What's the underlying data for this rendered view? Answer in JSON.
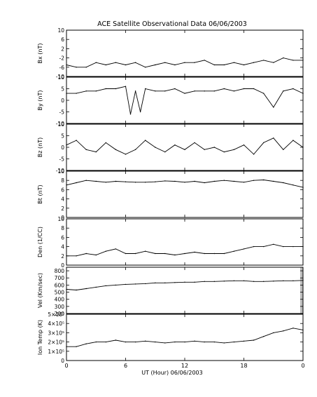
{
  "figure": {
    "title": "ACE Satellite Observational Data   06/06/2003",
    "xlabel": "UT (Hour)   06/06/2003"
  },
  "chart_data": [
    {
      "type": "line",
      "id": "bx",
      "ylabel": "Bx (nT)",
      "ylim": [
        -10,
        10
      ],
      "yticks": [
        "10",
        "6",
        "2",
        "-2",
        "-6",
        "-10"
      ],
      "ytick_values": [
        10,
        6,
        2,
        -2,
        -6,
        -10
      ],
      "xlim": [
        0,
        24
      ],
      "xticks": [
        "0",
        "6",
        "12",
        "18",
        "0"
      ],
      "xtick_values": [
        0,
        6,
        12,
        18,
        24
      ],
      "x": [
        0,
        1,
        2,
        3,
        4,
        5,
        6,
        7,
        8,
        9,
        10,
        11,
        12,
        13,
        14,
        15,
        16,
        17,
        18,
        19,
        20,
        21,
        22,
        23,
        24
      ],
      "y": [
        -5,
        -6,
        -6,
        -4,
        -5,
        -4,
        -5,
        -4,
        -6,
        -5,
        -4,
        -5,
        -4,
        -4,
        -3,
        -5,
        -5,
        -4,
        -5,
        -4,
        -3,
        -4,
        -2,
        -3,
        -3
      ]
    },
    {
      "type": "line",
      "id": "by",
      "ylabel": "By (nT)",
      "ylim": [
        -10,
        10
      ],
      "yticks": [
        "10",
        "5",
        "0",
        "-5",
        "-10"
      ],
      "ytick_values": [
        10,
        5,
        0,
        -5,
        -10
      ],
      "xlim": [
        0,
        24
      ],
      "xticks": [
        "0",
        "6",
        "12",
        "18",
        "0"
      ],
      "xtick_values": [
        0,
        6,
        12,
        18,
        24
      ],
      "x": [
        0,
        1,
        2,
        3,
        4,
        5,
        6,
        6.5,
        7,
        7.5,
        8,
        9,
        10,
        11,
        12,
        13,
        14,
        15,
        16,
        17,
        18,
        19,
        20,
        21,
        22,
        23,
        24
      ],
      "y": [
        3,
        3,
        4,
        4,
        5,
        5,
        6,
        -6,
        4,
        -5,
        5,
        4,
        4,
        5,
        3,
        4,
        4,
        4,
        5,
        4,
        5,
        5,
        3,
        -3,
        4,
        5,
        3
      ]
    },
    {
      "type": "line",
      "id": "bz",
      "ylabel": "Bz (nT)",
      "ylim": [
        -10,
        10
      ],
      "yticks": [
        "10",
        "5",
        "0",
        "-5",
        "-10"
      ],
      "ytick_values": [
        10,
        5,
        0,
        -5,
        -10
      ],
      "xlim": [
        0,
        24
      ],
      "xticks": [
        "0",
        "6",
        "12",
        "18",
        "0"
      ],
      "xtick_values": [
        0,
        6,
        12,
        18,
        24
      ],
      "x": [
        0,
        1,
        2,
        3,
        4,
        5,
        6,
        7,
        8,
        9,
        10,
        11,
        12,
        13,
        14,
        15,
        16,
        17,
        18,
        19,
        20,
        21,
        22,
        23,
        24
      ],
      "y": [
        1,
        3,
        -1,
        -2,
        2,
        -1,
        -3,
        -1,
        3,
        0,
        -2,
        1,
        -1,
        2,
        -1,
        0,
        -2,
        -1,
        1,
        -3,
        2,
        4,
        -1,
        3,
        0
      ]
    },
    {
      "type": "line",
      "id": "bt",
      "ylabel": "Bt (nT)",
      "ylim": [
        0,
        10
      ],
      "yticks": [
        "10",
        "8",
        "6",
        "4",
        "2",
        "0"
      ],
      "ytick_values": [
        10,
        8,
        6,
        4,
        2,
        0
      ],
      "xlim": [
        0,
        24
      ],
      "xticks": [
        "0",
        "6",
        "12",
        "18",
        "0"
      ],
      "xtick_values": [
        0,
        6,
        12,
        18,
        24
      ],
      "x": [
        0,
        1,
        2,
        3,
        4,
        5,
        6,
        7,
        8,
        9,
        10,
        11,
        12,
        13,
        14,
        15,
        16,
        17,
        18,
        19,
        20,
        21,
        22,
        23,
        24
      ],
      "y": [
        7,
        7.5,
        8,
        7.8,
        7.6,
        7.8,
        7.7,
        7.6,
        7.6,
        7.7,
        7.9,
        7.8,
        7.6,
        7.8,
        7.5,
        7.8,
        8,
        7.8,
        7.6,
        8,
        8.1,
        7.8,
        7.5,
        7,
        6.5
      ]
    },
    {
      "type": "line",
      "id": "den",
      "ylabel": "Den (1/CC)",
      "ylim": [
        0,
        10
      ],
      "yticks": [
        "10",
        "8",
        "6",
        "4",
        "2",
        "0"
      ],
      "ytick_values": [
        10,
        8,
        6,
        4,
        2,
        0
      ],
      "xlim": [
        0,
        24
      ],
      "xticks": [
        "0",
        "6",
        "12",
        "18",
        "0"
      ],
      "xtick_values": [
        0,
        6,
        12,
        18,
        24
      ],
      "x": [
        0,
        1,
        2,
        3,
        4,
        5,
        6,
        7,
        8,
        9,
        10,
        11,
        12,
        13,
        14,
        15,
        16,
        17,
        18,
        19,
        20,
        21,
        22,
        23,
        24
      ],
      "y": [
        2,
        2,
        2.5,
        2.2,
        3,
        3.5,
        2.5,
        2.5,
        3,
        2.5,
        2.5,
        2.2,
        2.5,
        2.8,
        2.5,
        2.5,
        2.5,
        3,
        3.5,
        4,
        4,
        4.5,
        4,
        4,
        4
      ]
    },
    {
      "type": "line",
      "id": "vel",
      "ylabel": "Vel (Km/sec)",
      "ylim": [
        200,
        850
      ],
      "yticks": [
        "800",
        "700",
        "600",
        "500",
        "400",
        "300",
        "200"
      ],
      "ytick_values": [
        800,
        700,
        600,
        500,
        400,
        300,
        200
      ],
      "xlim": [
        0,
        24
      ],
      "xticks": [
        "0",
        "6",
        "12",
        "18",
        "0"
      ],
      "xtick_values": [
        0,
        6,
        12,
        18,
        24
      ],
      "x": [
        0,
        1,
        2,
        3,
        4,
        5,
        6,
        7,
        8,
        9,
        10,
        11,
        12,
        13,
        14,
        15,
        16,
        17,
        18,
        19,
        20,
        21,
        22,
        23,
        24
      ],
      "y": [
        540,
        530,
        550,
        570,
        590,
        600,
        610,
        615,
        620,
        630,
        630,
        635,
        640,
        640,
        650,
        650,
        655,
        660,
        660,
        650,
        650,
        655,
        660,
        660,
        665
      ]
    },
    {
      "type": "line",
      "id": "iontemp",
      "ylabel": "Ion Temp (K)",
      "ylim": [
        0,
        500000
      ],
      "yticks": [
        "5×10⁵",
        "4×10⁵",
        "3×10⁵",
        "2×10⁵",
        "1×10⁵",
        "0"
      ],
      "ytick_values": [
        500000,
        400000,
        300000,
        200000,
        100000,
        0
      ],
      "xlim": [
        0,
        24
      ],
      "xticks": [
        "0",
        "6",
        "12",
        "18",
        "0"
      ],
      "xtick_values": [
        0,
        6,
        12,
        18,
        24
      ],
      "x": [
        0,
        1,
        2,
        3,
        4,
        5,
        6,
        7,
        8,
        9,
        10,
        11,
        12,
        13,
        14,
        15,
        16,
        17,
        18,
        19,
        20,
        21,
        22,
        23,
        24
      ],
      "y": [
        150000,
        150000,
        180000,
        200000,
        200000,
        220000,
        200000,
        200000,
        210000,
        200000,
        190000,
        200000,
        200000,
        210000,
        200000,
        200000,
        190000,
        200000,
        210000,
        220000,
        260000,
        300000,
        320000,
        350000,
        330000
      ]
    }
  ]
}
